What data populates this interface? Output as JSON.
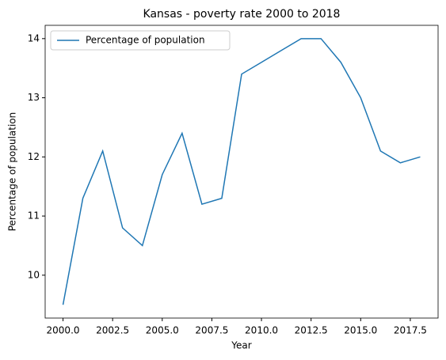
{
  "chart_data": {
    "type": "line",
    "title": "Kansas - poverty rate 2000 to 2018",
    "x_label": "Year",
    "y_label": "Percentage of population",
    "x": [
      2000,
      2001,
      2002,
      2003,
      2004,
      2005,
      2006,
      2007,
      2008,
      2009,
      2010,
      2011,
      2012,
      2013,
      2014,
      2015,
      2016,
      2017,
      2018
    ],
    "series": [
      {
        "name": "Percentage of population",
        "color": "#1f77b4",
        "values": [
          9.5,
          11.3,
          12.1,
          10.8,
          10.5,
          11.7,
          12.4,
          11.2,
          11.3,
          13.4,
          13.6,
          13.8,
          14.0,
          14.0,
          13.6,
          13.0,
          12.1,
          11.9,
          12.0
        ]
      }
    ],
    "xlim": [
      1999.1,
      2018.9
    ],
    "ylim": [
      9.275,
      14.225
    ],
    "xticks": [
      {
        "value": 2000,
        "label": "2000.0"
      },
      {
        "value": 2002.5,
        "label": "2002.5"
      },
      {
        "value": 2005,
        "label": "2005.0"
      },
      {
        "value": 2007.5,
        "label": "2007.5"
      },
      {
        "value": 2010,
        "label": "2010.0"
      },
      {
        "value": 2012.5,
        "label": "2012.5"
      },
      {
        "value": 2015,
        "label": "2015.0"
      },
      {
        "value": 2017.5,
        "label": "2017.5"
      }
    ],
    "yticks": [
      10,
      11,
      12,
      13,
      14
    ],
    "legend": "upper left",
    "grid": false
  }
}
